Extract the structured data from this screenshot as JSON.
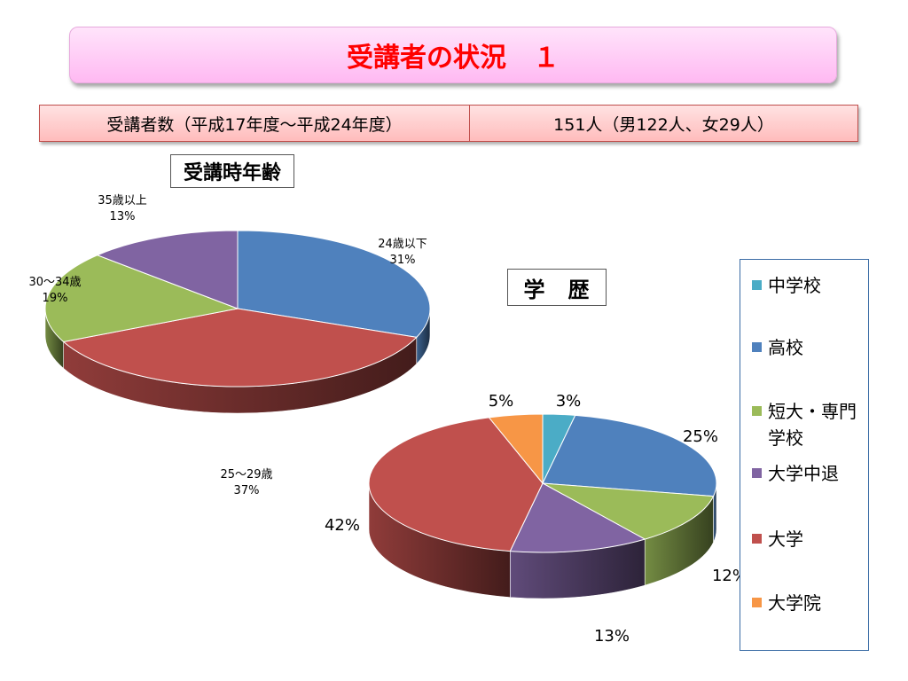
{
  "title": "受講者の状況　１",
  "summary": {
    "label": "受講者数（平成17年度〜平成24年度）",
    "value": "151人（男122人、女29人）"
  },
  "chart_data": [
    {
      "type": "pie",
      "title": "受講時年齢",
      "slices": [
        {
          "label": "24歳以下",
          "value": 31,
          "value_label": "31%",
          "color": "#4f81bd"
        },
        {
          "label": "25〜29歳",
          "value": 37,
          "value_label": "37%",
          "color": "#c0504d"
        },
        {
          "label": "30〜34歳",
          "value": 19,
          "value_label": "19%",
          "color": "#9bbb59"
        },
        {
          "label": "35歳以上",
          "value": 13,
          "value_label": "13%",
          "color": "#8064a2"
        }
      ]
    },
    {
      "type": "pie",
      "title": "学　歴",
      "slices": [
        {
          "label": "中学校",
          "value": 3,
          "value_label": "3%",
          "color": "#4bacc6"
        },
        {
          "label": "高校",
          "value": 25,
          "value_label": "25%",
          "color": "#4f81bd"
        },
        {
          "label": "短大・専門学校",
          "value": 12,
          "value_label": "12%",
          "color": "#9bbb59"
        },
        {
          "label": "大学中退",
          "value": 13,
          "value_label": "13%",
          "color": "#8064a2"
        },
        {
          "label": "大学",
          "value": 42,
          "value_label": "42%",
          "color": "#c0504d"
        },
        {
          "label": "大学院",
          "value": 5,
          "value_label": "5%",
          "color": "#f79646"
        }
      ],
      "legend": [
        {
          "label": "中学校",
          "color": "#4bacc6"
        },
        {
          "label": "高校",
          "color": "#4f81bd"
        },
        {
          "label": "短大・専門学校",
          "color": "#9bbb59"
        },
        {
          "label": "大学中退",
          "color": "#8064a2"
        },
        {
          "label": "大学",
          "color": "#c0504d"
        },
        {
          "label": "大学院",
          "color": "#f79646"
        }
      ],
      "legend_placement": "right"
    }
  ]
}
